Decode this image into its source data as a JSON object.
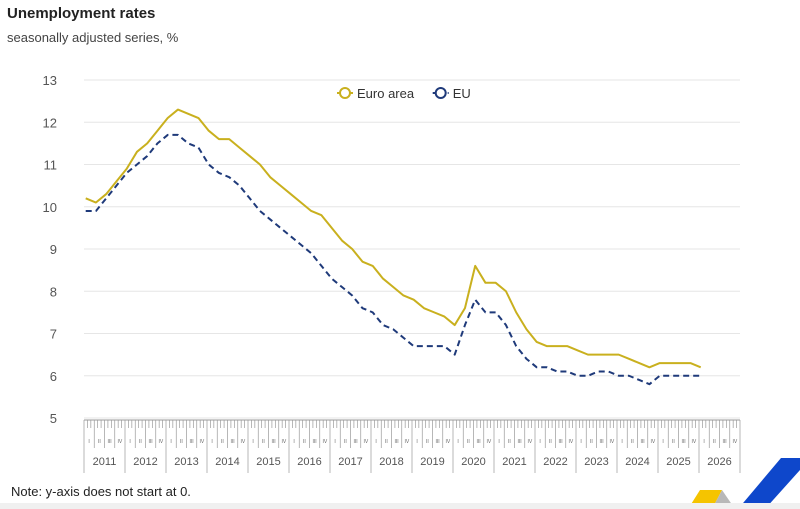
{
  "header": {
    "title": "Unemployment rates",
    "subtitle": "seasonally adjusted series, %"
  },
  "note": "Note: y-axis does not start at 0.",
  "chart_data": {
    "type": "line",
    "title": "Unemployment rates",
    "subtitle": "seasonally adjusted series, %",
    "xlabel": "",
    "ylabel": "",
    "ylim": [
      5,
      13
    ],
    "yticks": [
      "5",
      "6",
      "7",
      "8",
      "9",
      "10",
      "11",
      "12",
      "13"
    ],
    "xlim": [
      2011,
      2027
    ],
    "year_labels": [
      "2011",
      "2012",
      "2013",
      "2014",
      "2015",
      "2016",
      "2017",
      "2018",
      "2019",
      "2020",
      "2021",
      "2022",
      "2023",
      "2024",
      "2025",
      "2026"
    ],
    "quarter_labels": [
      "I",
      "II",
      "III",
      "IV"
    ],
    "grid": true,
    "legend_position": "top-center",
    "series": [
      {
        "name": "Euro area",
        "color": "#c9b01e",
        "style": "solid",
        "values": [
          10.2,
          10.1,
          10.3,
          10.6,
          10.9,
          11.3,
          11.5,
          11.8,
          12.1,
          12.3,
          12.2,
          12.1,
          11.8,
          11.6,
          11.6,
          11.4,
          11.2,
          11.0,
          10.7,
          10.5,
          10.3,
          10.1,
          9.9,
          9.8,
          9.5,
          9.2,
          9.0,
          8.7,
          8.6,
          8.3,
          8.1,
          7.9,
          7.8,
          7.6,
          7.5,
          7.4,
          7.2,
          7.6,
          8.6,
          8.2,
          8.2,
          8.0,
          7.5,
          7.1,
          6.8,
          6.7,
          6.7,
          6.7,
          6.6,
          6.5,
          6.5,
          6.5,
          6.5,
          6.4,
          6.3,
          6.2,
          6.3,
          6.3,
          6.3,
          6.3,
          6.2
        ]
      },
      {
        "name": "EU",
        "color": "#1f3a7a",
        "style": "dashed",
        "values": [
          9.9,
          9.9,
          10.2,
          10.5,
          10.8,
          11.0,
          11.2,
          11.5,
          11.7,
          11.7,
          11.5,
          11.4,
          11.0,
          10.8,
          10.7,
          10.5,
          10.2,
          9.9,
          9.7,
          9.5,
          9.3,
          9.1,
          8.9,
          8.6,
          8.3,
          8.1,
          7.9,
          7.6,
          7.5,
          7.2,
          7.1,
          6.9,
          6.7,
          6.7,
          6.7,
          6.7,
          6.5,
          7.2,
          7.8,
          7.5,
          7.5,
          7.2,
          6.7,
          6.4,
          6.2,
          6.2,
          6.1,
          6.1,
          6.0,
          6.0,
          6.1,
          6.1,
          6.0,
          6.0,
          5.9,
          5.8,
          6.0,
          6.0,
          6.0,
          6.0,
          6.0
        ]
      }
    ],
    "x_frequency": "quarterly from 2011 Q1 to 2026 Q1"
  }
}
